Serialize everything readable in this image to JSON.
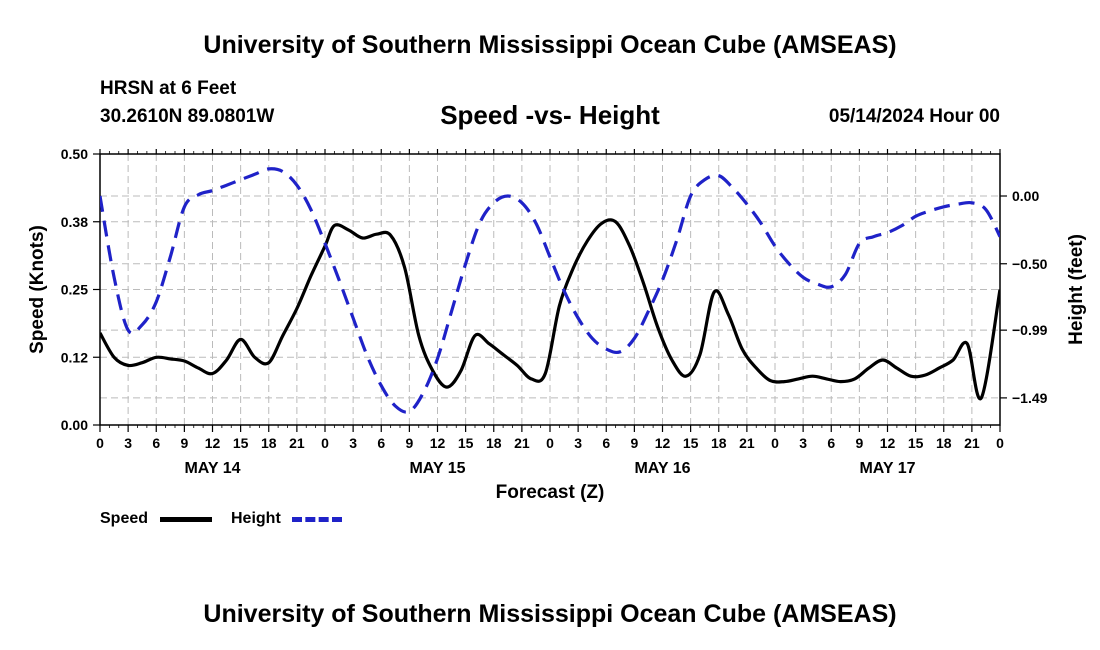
{
  "page": {
    "title_top": "University of Southern Mississippi Ocean Cube (AMSEAS)",
    "title_bottom": "University of Southern Mississippi Ocean Cube (AMSEAS)",
    "station": "HRSN at 6 Feet",
    "coords": "30.2610N  89.0801W",
    "date": "05/14/2024 Hour 00"
  },
  "colors": {
    "speed": "#000000",
    "height": "#1f22c8",
    "grid": "#bbbbbb"
  },
  "chart_data": {
    "type": "line",
    "title": "Speed -vs- Height",
    "xlabel": "Forecast (Z)",
    "ylabel": "Speed (Knots)",
    "y2label": "Height (feet)",
    "x_range_hours": [
      0,
      96
    ],
    "x_tick_step_hours": 3,
    "x_tick_labels": [
      "0",
      "3",
      "6",
      "9",
      "12",
      "15",
      "18",
      "21",
      "0",
      "3",
      "6",
      "9",
      "12",
      "15",
      "18",
      "21",
      "0",
      "3",
      "6",
      "9",
      "12",
      "15",
      "18",
      "21",
      "0",
      "3",
      "6",
      "9",
      "12",
      "15",
      "18",
      "21",
      "0"
    ],
    "day_labels": [
      {
        "hour": 12,
        "label": "MAY 14"
      },
      {
        "hour": 36,
        "label": "MAY 15"
      },
      {
        "hour": 60,
        "label": "MAY 16"
      },
      {
        "hour": 84,
        "label": "MAY 17"
      }
    ],
    "y_range": [
      0.0,
      0.5
    ],
    "y_ticks": [
      0.0,
      0.125,
      0.25,
      0.375,
      0.5
    ],
    "y_tick_labels": [
      "0.00",
      "0.12",
      "0.25",
      "0.38",
      "0.50"
    ],
    "y2_range": [
      -1.69,
      0.31
    ],
    "y2_ticks": [
      -1.49,
      -0.99,
      -0.5,
      0.0
    ],
    "y2_tick_labels": [
      "−1.49",
      "−0.99",
      "−0.50",
      "0.00"
    ],
    "series": [
      {
        "name": "Speed",
        "axis": "left",
        "style": "solid",
        "x": [
          0,
          1.5,
          3,
          4.5,
          6,
          7.5,
          9,
          10.5,
          12,
          13.5,
          15,
          16.5,
          18,
          19.5,
          21,
          22.5,
          24,
          25,
          26.5,
          28,
          29.5,
          31,
          32.5,
          34,
          35.5,
          37,
          38.5,
          40,
          41.5,
          43,
          44.5,
          46,
          47.5,
          49,
          50.5,
          52,
          53.5,
          55,
          56.5,
          58,
          59.5,
          61,
          62.5,
          64,
          65.5,
          67,
          68.5,
          70,
          71.5,
          73,
          74.5,
          76,
          77.5,
          79,
          80.5,
          82,
          83.5,
          85,
          86.5,
          88,
          89.5,
          91,
          92.5,
          94,
          96
        ],
        "values": [
          0.17,
          0.125,
          0.11,
          0.115,
          0.125,
          0.122,
          0.118,
          0.105,
          0.095,
          0.12,
          0.158,
          0.125,
          0.115,
          0.165,
          0.215,
          0.275,
          0.33,
          0.368,
          0.36,
          0.345,
          0.352,
          0.35,
          0.29,
          0.165,
          0.1,
          0.07,
          0.1,
          0.165,
          0.15,
          0.13,
          0.11,
          0.085,
          0.095,
          0.22,
          0.29,
          0.34,
          0.372,
          0.375,
          0.33,
          0.26,
          0.18,
          0.12,
          0.09,
          0.13,
          0.245,
          0.205,
          0.14,
          0.105,
          0.082,
          0.08,
          0.085,
          0.09,
          0.085,
          0.08,
          0.085,
          0.105,
          0.12,
          0.105,
          0.09,
          0.092,
          0.105,
          0.12,
          0.15,
          0.05,
          0.25
        ]
      },
      {
        "name": "Height",
        "axis": "right",
        "style": "dashed",
        "x": [
          0,
          1.5,
          3,
          4.5,
          6,
          7.5,
          9,
          10.5,
          12,
          13.5,
          15,
          16.5,
          18,
          19.5,
          21,
          22.5,
          24,
          25.5,
          27,
          28.5,
          30,
          31.5,
          33,
          34.5,
          36,
          37.5,
          39,
          40.5,
          42,
          43.5,
          45,
          46.5,
          48,
          49.5,
          51,
          52.5,
          54,
          55.5,
          57,
          58.5,
          60,
          61.5,
          63,
          64.5,
          66,
          67.5,
          69,
          70.5,
          72,
          73.5,
          75,
          76.5,
          78,
          79.5,
          81,
          82.5,
          84,
          85.5,
          87,
          88.5,
          90,
          91.5,
          93,
          94.5,
          96
        ],
        "values": [
          0.0,
          -0.6,
          -0.99,
          -0.95,
          -0.78,
          -0.45,
          -0.08,
          0.01,
          0.04,
          0.08,
          0.12,
          0.16,
          0.2,
          0.18,
          0.08,
          -0.1,
          -0.35,
          -0.62,
          -0.9,
          -1.18,
          -1.4,
          -1.55,
          -1.59,
          -1.45,
          -1.2,
          -0.85,
          -0.5,
          -0.2,
          -0.05,
          0.0,
          -0.05,
          -0.2,
          -0.45,
          -0.7,
          -0.9,
          -1.05,
          -1.13,
          -1.15,
          -1.05,
          -0.85,
          -0.62,
          -0.33,
          0.0,
          0.12,
          0.15,
          0.06,
          -0.06,
          -0.2,
          -0.37,
          -0.5,
          -0.6,
          -0.65,
          -0.67,
          -0.58,
          -0.35,
          -0.3,
          -0.27,
          -0.22,
          -0.15,
          -0.11,
          -0.08,
          -0.06,
          -0.05,
          -0.1,
          -0.3
        ]
      }
    ]
  }
}
